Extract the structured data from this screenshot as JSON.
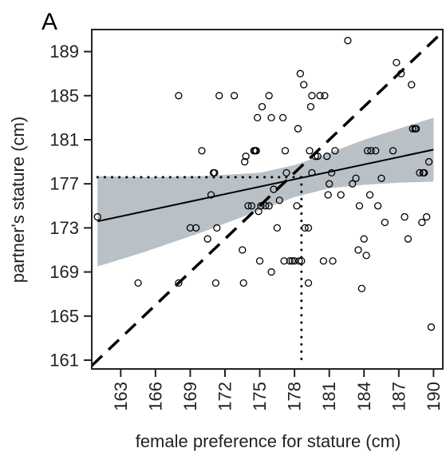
{
  "chart_data": {
    "type": "scatter",
    "panel_label": "A",
    "xlabel": "female preference for stature (cm)",
    "ylabel": "partner's stature (cm)",
    "xlim": [
      160.5,
      190.8
    ],
    "ylim": [
      160.2,
      191
    ],
    "xticks": [
      163,
      166,
      169,
      172,
      175,
      178,
      181,
      184,
      187,
      190
    ],
    "yticks": [
      161,
      165,
      169,
      173,
      177,
      181,
      185,
      189
    ],
    "grid": false,
    "points": [
      [
        161,
        174
      ],
      [
        164.5,
        168
      ],
      [
        168,
        185
      ],
      [
        168,
        168
      ],
      [
        169,
        173
      ],
      [
        169.5,
        173
      ],
      [
        170,
        180
      ],
      [
        170.5,
        172
      ],
      [
        170.8,
        176
      ],
      [
        171,
        178
      ],
      [
        171.1,
        178
      ],
      [
        171.2,
        168
      ],
      [
        171.3,
        173
      ],
      [
        171.5,
        185
      ],
      [
        172.8,
        185
      ],
      [
        173.5,
        171
      ],
      [
        173.6,
        168
      ],
      [
        173.7,
        179
      ],
      [
        173.8,
        179.5
      ],
      [
        174,
        175
      ],
      [
        174.3,
        175
      ],
      [
        174.5,
        180
      ],
      [
        174.6,
        180
      ],
      [
        174.7,
        180
      ],
      [
        174.8,
        183
      ],
      [
        174.9,
        174.5
      ],
      [
        175,
        170
      ],
      [
        175.1,
        175
      ],
      [
        175.2,
        184
      ],
      [
        175.5,
        175
      ],
      [
        175.8,
        185
      ],
      [
        175.8,
        175
      ],
      [
        176,
        169
      ],
      [
        176,
        183
      ],
      [
        176.2,
        176.5
      ],
      [
        176.5,
        173
      ],
      [
        176.7,
        175.5
      ],
      [
        177,
        183
      ],
      [
        177.1,
        170
      ],
      [
        177.2,
        180
      ],
      [
        177.3,
        178
      ],
      [
        177.6,
        170
      ],
      [
        177.8,
        170
      ],
      [
        178,
        170
      ],
      [
        178.2,
        175
      ],
      [
        178.3,
        182
      ],
      [
        178.4,
        170
      ],
      [
        178.5,
        187
      ],
      [
        178.6,
        170
      ],
      [
        178.8,
        186
      ],
      [
        178.9,
        173
      ],
      [
        179.2,
        173
      ],
      [
        179.2,
        168
      ],
      [
        179.3,
        180
      ],
      [
        179.4,
        184
      ],
      [
        179.5,
        185
      ],
      [
        179.5,
        178
      ],
      [
        179.8,
        179.5
      ],
      [
        180,
        179.5
      ],
      [
        180.2,
        185
      ],
      [
        180.5,
        170
      ],
      [
        180.6,
        185
      ],
      [
        180.8,
        179.5
      ],
      [
        180.9,
        176
      ],
      [
        181,
        177
      ],
      [
        181.2,
        178
      ],
      [
        181.5,
        180
      ],
      [
        181.3,
        170
      ],
      [
        182,
        176
      ],
      [
        182.6,
        190
      ],
      [
        183,
        177
      ],
      [
        183.3,
        177.5
      ],
      [
        183.5,
        171
      ],
      [
        183.6,
        175
      ],
      [
        183.8,
        167.5
      ],
      [
        184,
        172
      ],
      [
        184.2,
        170.5
      ],
      [
        184.3,
        180
      ],
      [
        184.5,
        176
      ],
      [
        184.6,
        180
      ],
      [
        185,
        180
      ],
      [
        185.2,
        175
      ],
      [
        185.5,
        177.5
      ],
      [
        185.8,
        173.5
      ],
      [
        186.5,
        180
      ],
      [
        186.8,
        188
      ],
      [
        187.2,
        187
      ],
      [
        187.5,
        174
      ],
      [
        187.8,
        172
      ],
      [
        188.1,
        186
      ],
      [
        188.2,
        182
      ],
      [
        188.4,
        182
      ],
      [
        188.5,
        182
      ],
      [
        188.8,
        178
      ],
      [
        189,
        173.5
      ],
      [
        189.1,
        178
      ],
      [
        189.2,
        178
      ],
      [
        189.4,
        174
      ],
      [
        189.6,
        179
      ],
      [
        189.8,
        164
      ]
    ],
    "regression_line": {
      "x": [
        161,
        190
      ],
      "y": [
        173.6,
        180.1
      ]
    },
    "confidence_band": {
      "x": [
        161,
        165,
        170,
        175,
        178,
        181,
        184,
        187,
        190
      ],
      "upper": [
        177.7,
        177.6,
        177.7,
        178.0,
        178.7,
        179.8,
        181.0,
        182.0,
        183.0
      ],
      "lower": [
        169.5,
        170.8,
        172.6,
        174.6,
        175.8,
        176.6,
        176.9,
        177.1,
        177.2
      ]
    },
    "identity_line": {
      "x": [
        160.5,
        190.8
      ],
      "y": [
        160.5,
        190.8
      ]
    },
    "reference_point": {
      "x": 178.6,
      "y": 177.6
    },
    "colors": {
      "points": "#000000",
      "band": "#b9c0c6",
      "lines": "#000000",
      "axes": "#222222"
    }
  }
}
